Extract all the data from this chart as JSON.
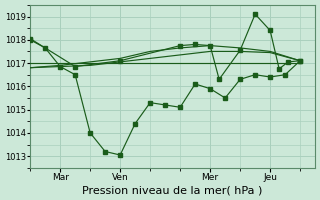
{
  "bg_color": "#cce8d8",
  "grid_color": "#aad0be",
  "line_color": "#1a5c1a",
  "marker_color": "#1a5c1a",
  "xlabel": "Pression niveau de la mer( hPa )",
  "xlabel_fontsize": 8,
  "ylim": [
    1012.5,
    1019.5
  ],
  "yticks": [
    1013,
    1014,
    1015,
    1016,
    1017,
    1018,
    1019
  ],
  "ytick_fontsize": 6,
  "day_labels": [
    "Mar",
    "Ven",
    "Mer",
    "Jeu"
  ],
  "day_positions": [
    1,
    3,
    6,
    8
  ],
  "x_vlines": [
    1,
    3,
    6,
    8
  ],
  "xlim": [
    0,
    9.5
  ],
  "series1_x": [
    0.0,
    0.5,
    1.0,
    1.5,
    2.0,
    2.5,
    3.0,
    3.5,
    4.0,
    4.5,
    5.0,
    5.5,
    6.0,
    6.5,
    7.0,
    7.5,
    8.0,
    8.5,
    9.0
  ],
  "series1_y": [
    1018.0,
    1017.65,
    1016.85,
    1016.5,
    1014.0,
    1013.2,
    1013.05,
    1014.4,
    1015.3,
    1015.2,
    1015.1,
    1016.1,
    1015.9,
    1015.5,
    1016.3,
    1016.5,
    1016.4,
    1016.5,
    1017.1
  ],
  "series2_x": [
    0.0,
    9.0
  ],
  "series2_y": [
    1017.0,
    1017.0
  ],
  "series3_x": [
    0.0,
    1.0,
    2.0,
    3.0,
    4.0,
    5.0,
    6.0,
    7.0,
    8.0,
    9.0
  ],
  "series3_y": [
    1016.8,
    1016.85,
    1016.9,
    1017.05,
    1017.2,
    1017.35,
    1017.5,
    1017.5,
    1017.45,
    1017.1
  ],
  "series4_x": [
    0.0,
    1.0,
    2.0,
    3.0,
    4.0,
    5.0,
    6.0,
    7.0,
    8.0,
    9.0
  ],
  "series4_y": [
    1016.8,
    1016.9,
    1017.05,
    1017.2,
    1017.5,
    1017.65,
    1017.75,
    1017.65,
    1017.5,
    1017.1
  ],
  "series5_x": [
    0.0,
    1.5,
    3.0,
    5.0,
    5.5,
    6.0,
    6.3,
    7.0,
    7.5,
    8.0,
    8.3,
    8.6,
    9.0
  ],
  "series5_y": [
    1018.05,
    1016.85,
    1017.1,
    1017.75,
    1017.8,
    1017.75,
    1016.3,
    1017.55,
    1019.1,
    1018.4,
    1016.75,
    1017.05,
    1017.1
  ]
}
